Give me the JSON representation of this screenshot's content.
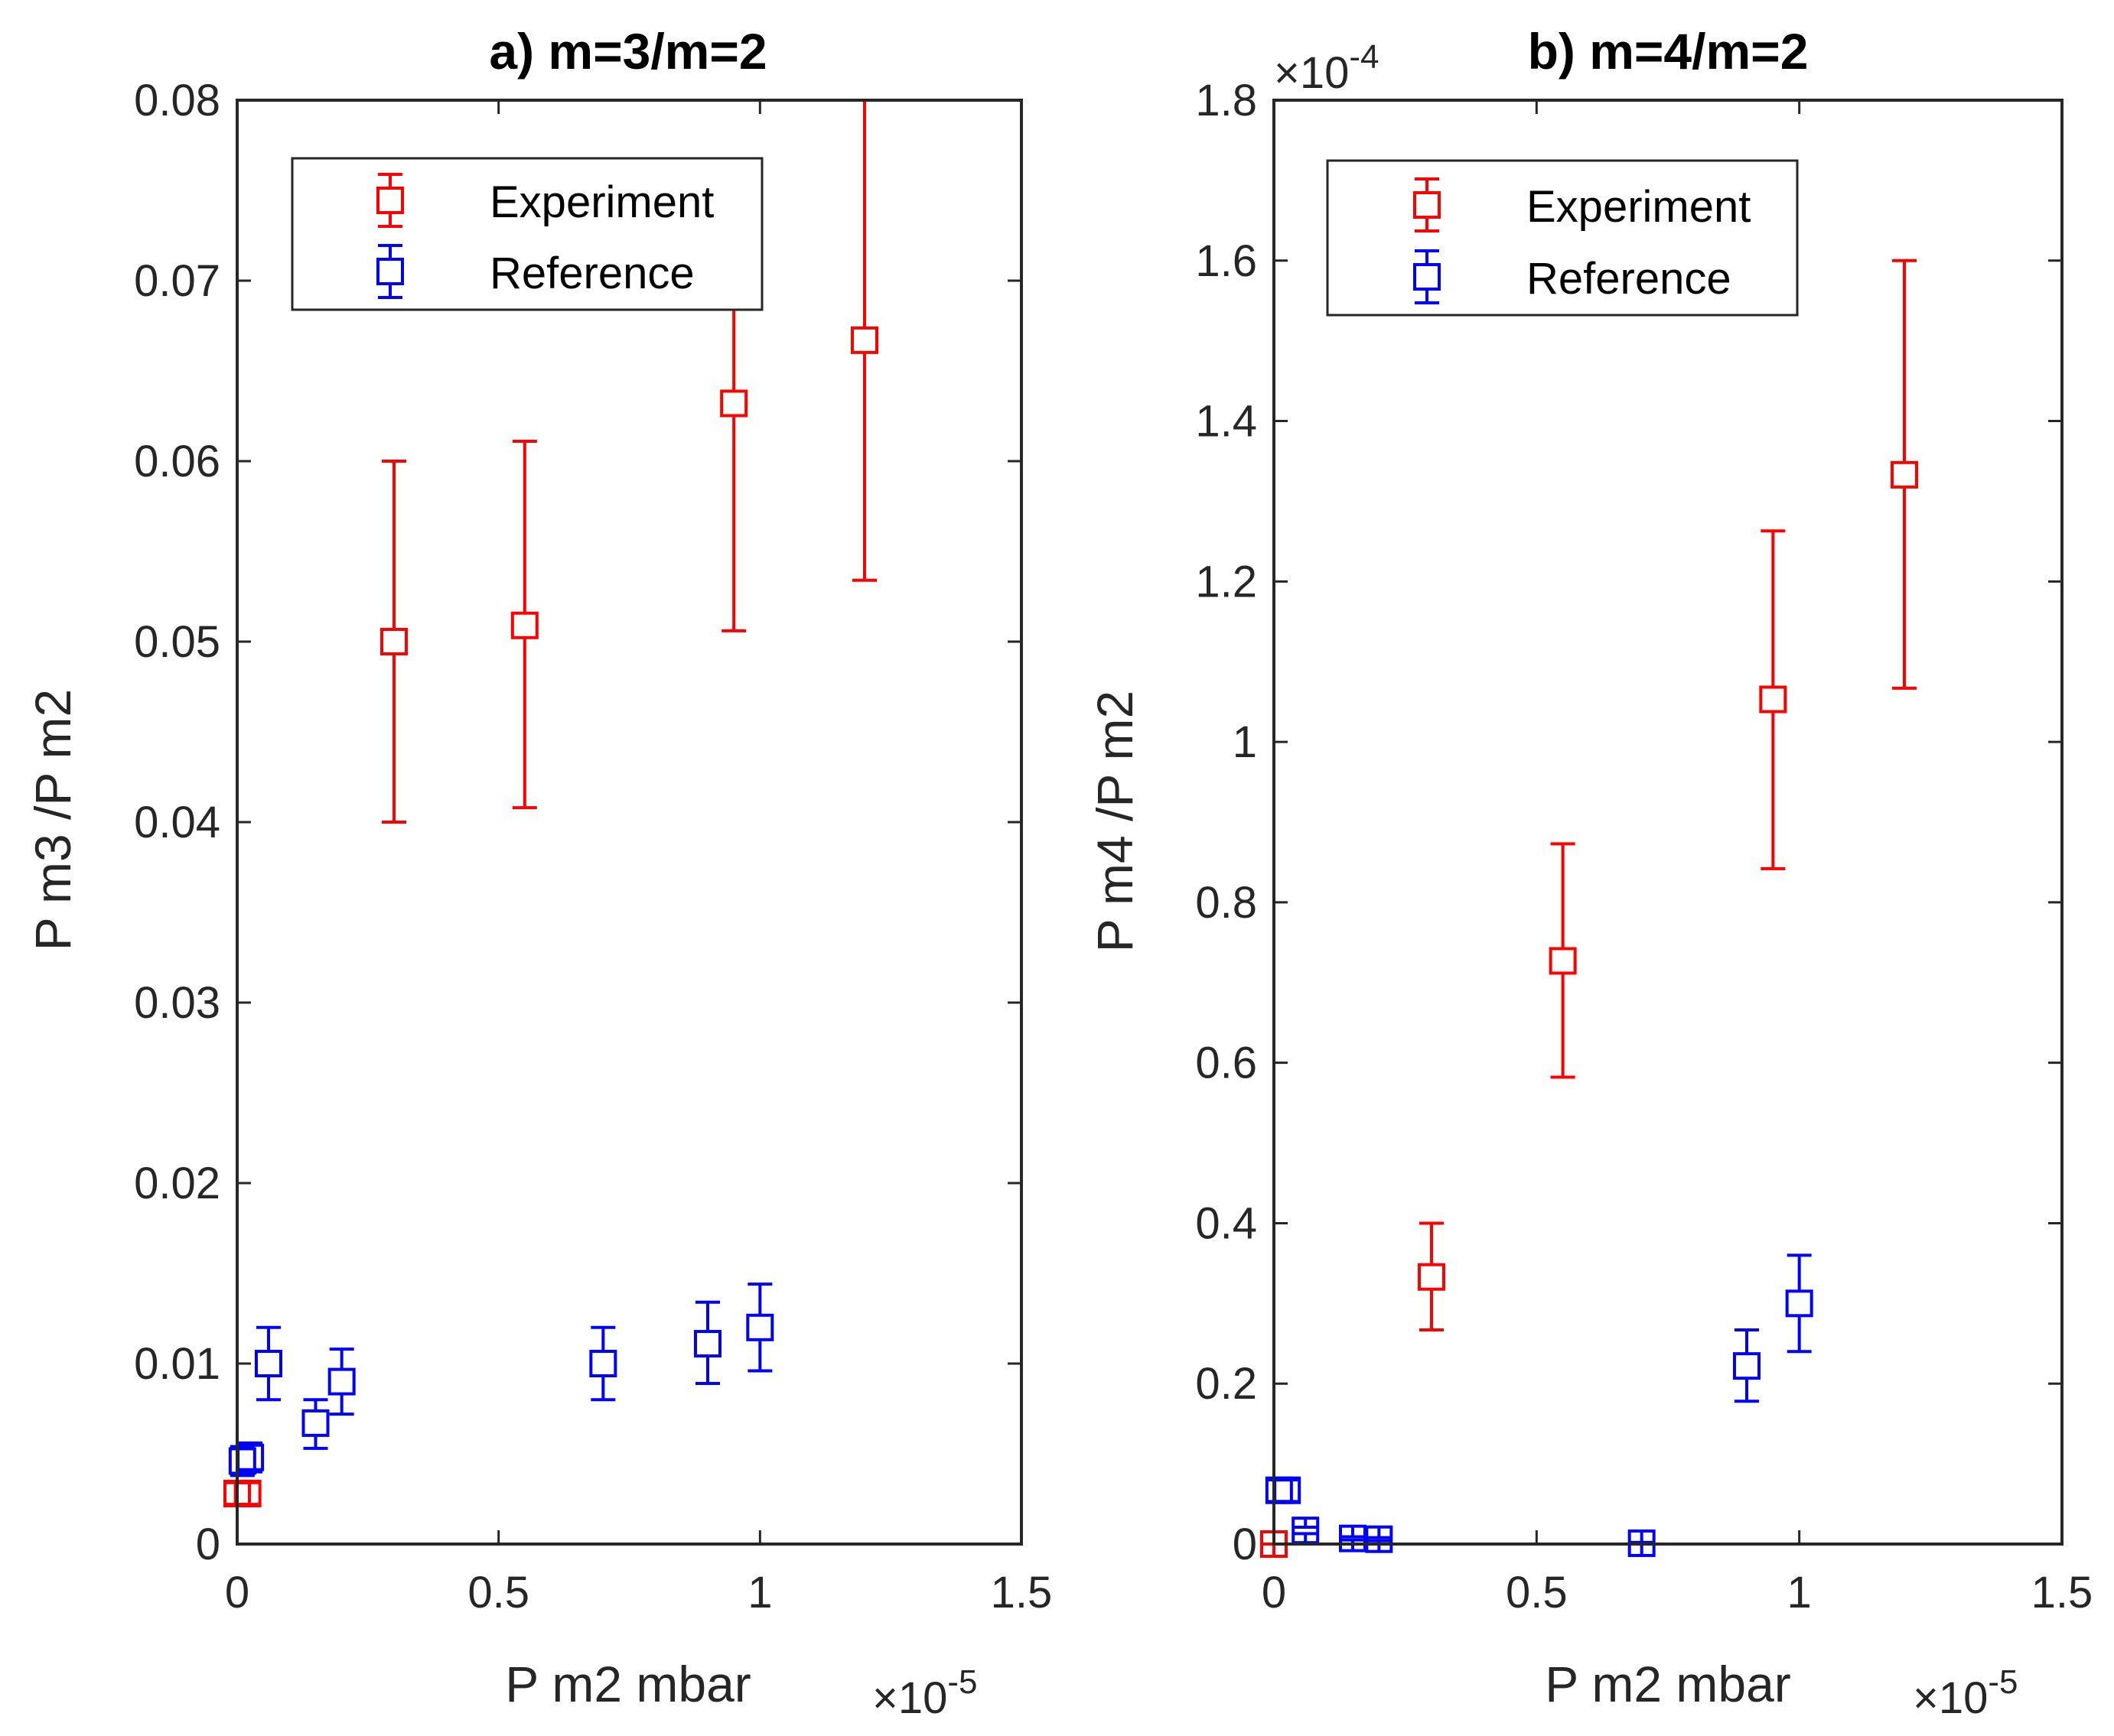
{
  "chart_data": [
    {
      "type": "scatter",
      "title": "a) m=3/m=2",
      "xlabel": "P m2 mbar",
      "ylabel": "P m3 /P m2",
      "x_multiplier": "×10",
      "x_exponent": "-5",
      "xlim": [
        0,
        1.5
      ],
      "ylim": [
        0,
        0.08
      ],
      "xticks": [
        0,
        0.5,
        1,
        1.5
      ],
      "xtick_labels": [
        "0",
        "0.5",
        "1",
        "1.5"
      ],
      "yticks": [
        0,
        0.01,
        0.02,
        0.03,
        0.04,
        0.05,
        0.06,
        0.07,
        0.08
      ],
      "ytick_labels": [
        "0",
        "0.01",
        "0.02",
        "0.03",
        "0.04",
        "0.05",
        "0.06",
        "0.07",
        "0.08"
      ],
      "legend_position": "top-left",
      "series": [
        {
          "name": "Experiment",
          "color": "#ff0000",
          "points": [
            {
              "x": 0.0,
              "y": 0.0028,
              "lo": 0.0022,
              "hi": 0.0034
            },
            {
              "x": 0.02,
              "y": 0.0028,
              "lo": 0.0022,
              "hi": 0.0034
            },
            {
              "x": 0.3,
              "y": 0.05,
              "lo": 0.04,
              "hi": 0.06
            },
            {
              "x": 0.55,
              "y": 0.0509,
              "lo": 0.0408,
              "hi": 0.0611
            },
            {
              "x": 0.95,
              "y": 0.0632,
              "lo": 0.0506,
              "hi": 0.0758
            },
            {
              "x": 1.2,
              "y": 0.0667,
              "lo": 0.0534,
              "hi": 0.08
            }
          ]
        },
        {
          "name": "Reference",
          "color": "#0000ff",
          "points": [
            {
              "x": 0.01,
              "y": 0.0046,
              "lo": 0.0038,
              "hi": 0.0054
            },
            {
              "x": 0.025,
              "y": 0.0048,
              "lo": 0.004,
              "hi": 0.0056
            },
            {
              "x": 0.06,
              "y": 0.01,
              "lo": 0.008,
              "hi": 0.012
            },
            {
              "x": 0.15,
              "y": 0.0067,
              "lo": 0.0053,
              "hi": 0.008
            },
            {
              "x": 0.2,
              "y": 0.009,
              "lo": 0.0072,
              "hi": 0.0108
            },
            {
              "x": 0.7,
              "y": 0.01,
              "lo": 0.008,
              "hi": 0.012
            },
            {
              "x": 0.9,
              "y": 0.0111,
              "lo": 0.0089,
              "hi": 0.0134
            },
            {
              "x": 1.0,
              "y": 0.012,
              "lo": 0.0096,
              "hi": 0.0144
            }
          ]
        }
      ]
    },
    {
      "type": "scatter",
      "title": "b) m=4/m=2",
      "xlabel": "P m2 mbar",
      "ylabel": "P m4 /P m2",
      "x_multiplier": "×10",
      "x_exponent": "-5",
      "y_multiplier": "×10",
      "y_exponent": "-4",
      "xlim": [
        0,
        1.5
      ],
      "ylim": [
        0,
        1.8
      ],
      "xticks": [
        0,
        0.5,
        1,
        1.5
      ],
      "xtick_labels": [
        "0",
        "0.5",
        "1",
        "1.5"
      ],
      "yticks": [
        0,
        0.2,
        0.4,
        0.6,
        0.8,
        1,
        1.2,
        1.4,
        1.6,
        1.8
      ],
      "ytick_labels": [
        "0",
        "0.2",
        "0.4",
        "0.6",
        "0.8",
        "1",
        "1.2",
        "1.4",
        "1.6",
        "1.8"
      ],
      "legend_position": "top-left",
      "series": [
        {
          "name": "Experiment",
          "color": "#ff0000",
          "points": [
            {
              "x": 0.0,
              "y": 0.0,
              "lo": 0.0,
              "hi": 0.0
            },
            {
              "x": 0.3,
              "y": 0.333,
              "lo": 0.267,
              "hi": 0.4
            },
            {
              "x": 0.55,
              "y": 0.727,
              "lo": 0.582,
              "hi": 0.873
            },
            {
              "x": 0.95,
              "y": 1.053,
              "lo": 0.842,
              "hi": 1.263
            },
            {
              "x": 1.2,
              "y": 1.333,
              "lo": 1.067,
              "hi": 1.6
            }
          ]
        },
        {
          "name": "Reference",
          "color": "#0000ff",
          "points": [
            {
              "x": 0.01,
              "y": 0.067,
              "lo": 0.053,
              "hi": 0.08
            },
            {
              "x": 0.025,
              "y": 0.067,
              "lo": 0.053,
              "hi": 0.08
            },
            {
              "x": 0.06,
              "y": 0.017,
              "lo": 0.013,
              "hi": 0.021
            },
            {
              "x": 0.15,
              "y": 0.007,
              "lo": 0.005,
              "hi": 0.009
            },
            {
              "x": 0.2,
              "y": 0.006,
              "lo": 0.004,
              "hi": 0.008
            },
            {
              "x": 0.7,
              "y": 0.001,
              "lo": 0.0,
              "hi": 0.002
            },
            {
              "x": 0.9,
              "y": 0.222,
              "lo": 0.178,
              "hi": 0.267
            },
            {
              "x": 1.0,
              "y": 0.3,
              "lo": 0.24,
              "hi": 0.36
            }
          ]
        }
      ]
    }
  ]
}
